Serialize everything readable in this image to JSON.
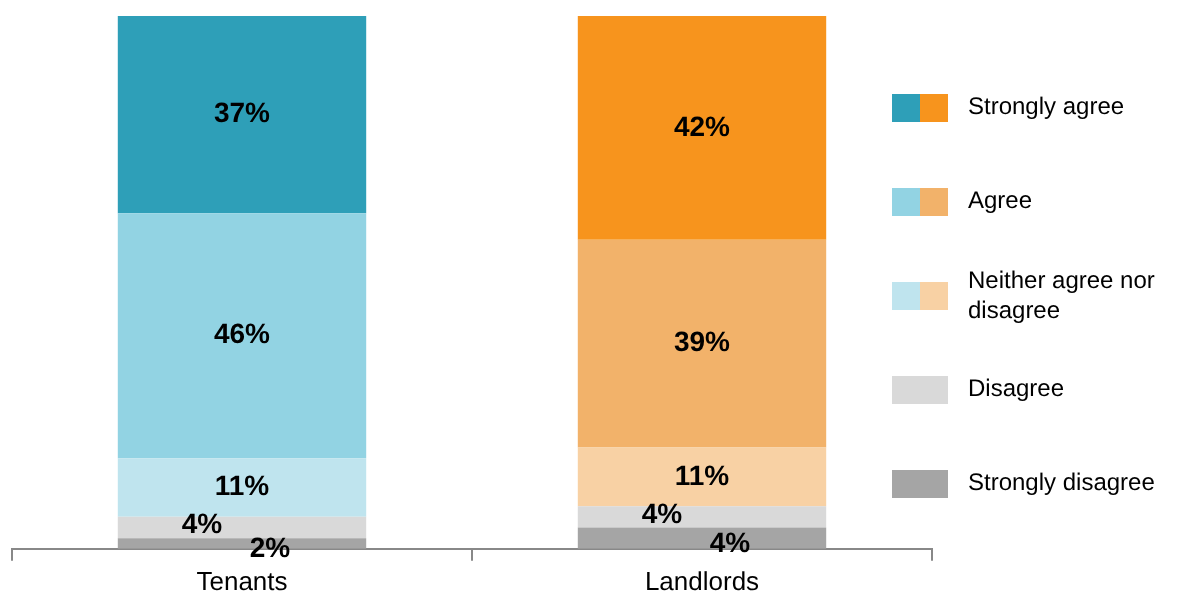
{
  "chart_data": {
    "type": "bar",
    "stacked": true,
    "legend": "right",
    "categories": [
      "Tenants",
      "Landlords"
    ],
    "series": [
      {
        "name": "Strongly disagree",
        "colors": [
          "#a5a5a5",
          "#a5a5a5"
        ],
        "values": [
          2,
          4
        ],
        "value_labels": [
          "2%",
          "4%"
        ]
      },
      {
        "name": "Disagree",
        "colors": [
          "#d9d9d9",
          "#d9d9d9"
        ],
        "values": [
          4,
          4
        ],
        "value_labels": [
          "4%",
          "4%"
        ]
      },
      {
        "name": "Neither agree nor disagree",
        "colors": [
          "#bfe4ee",
          "#f8d1a4"
        ],
        "values": [
          11,
          11
        ],
        "value_labels": [
          "11%",
          "11%"
        ]
      },
      {
        "name": "Agree",
        "colors": [
          "#92d3e3",
          "#f2b26a"
        ],
        "values": [
          46,
          39
        ],
        "value_labels": [
          "46%",
          "39%"
        ]
      },
      {
        "name": "Strongly agree",
        "colors": [
          "#2e9fb8",
          "#f7941d"
        ],
        "values": [
          37,
          42
        ],
        "value_labels": [
          "37%",
          "42%"
        ]
      }
    ]
  }
}
